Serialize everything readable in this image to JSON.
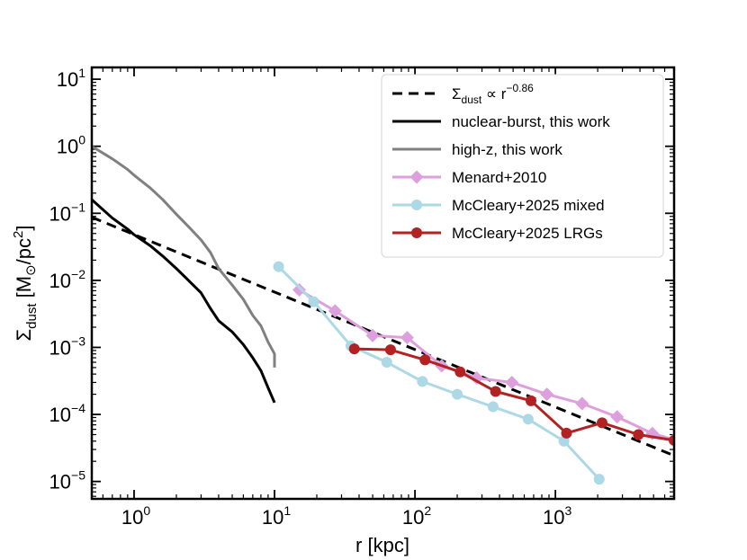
{
  "chart_data": {
    "type": "line",
    "xscale": "log",
    "yscale": "log",
    "xlim": [
      0.5,
      7000
    ],
    "ylim": [
      5.5e-06,
      15
    ],
    "xlabel": "r [kpc]",
    "ylabel": {
      "base": "Σ",
      "sub": "dust",
      "unit_main": " [M",
      "unit_sun": "⊙",
      "unit_rest": "/pc",
      "unit_exp": "2",
      "unit_close": "]"
    },
    "x_ticks": [
      {
        "base": "10",
        "exp": "0"
      },
      {
        "base": "10",
        "exp": "1"
      },
      {
        "base": "10",
        "exp": "2"
      },
      {
        "base": "10",
        "exp": "3"
      }
    ],
    "y_ticks": [
      {
        "base": "10",
        "exp": "−5"
      },
      {
        "base": "10",
        "exp": "−4"
      },
      {
        "base": "10",
        "exp": "−3"
      },
      {
        "base": "10",
        "exp": "−2"
      },
      {
        "base": "10",
        "exp": "−1"
      },
      {
        "base": "10",
        "exp": "0"
      },
      {
        "base": "10",
        "exp": "1"
      }
    ],
    "legend_position": "top-right",
    "series": [
      {
        "name": "Σdust ∝ r−0.86",
        "legend": {
          "base": "Σ",
          "sub": "dust",
          "mid": " ∝ r",
          "exp": "−0.86"
        },
        "style": "dashed",
        "color": "#000000",
        "marker": "none",
        "x": [
          0.5,
          7000
        ],
        "y": [
          0.0873,
          2.43e-05
        ]
      },
      {
        "name": "nuclear-burst, this work",
        "legend": {
          "text": "nuclear-burst, this work"
        },
        "style": "solid",
        "color": "#000000",
        "marker": "none",
        "x": [
          0.5,
          0.7,
          0.9,
          1.0,
          1.3,
          1.6,
          2.0,
          2.5,
          3.0,
          3.5,
          4.0,
          5.0,
          6.0,
          7.0,
          8.0,
          9.0,
          10.0
        ],
        "y": [
          0.16,
          0.085,
          0.058,
          0.048,
          0.033,
          0.023,
          0.015,
          0.0095,
          0.0065,
          0.0038,
          0.0025,
          0.0017,
          0.0011,
          0.0007,
          0.00045,
          0.00025,
          0.00015
        ]
      },
      {
        "name": "high-z, this work",
        "legend": {
          "text": "high-z, this work"
        },
        "style": "solid",
        "color": "#808080",
        "marker": "none",
        "x": [
          0.5,
          0.7,
          0.9,
          1.0,
          1.3,
          1.6,
          2.0,
          2.5,
          3.0,
          3.5,
          4.0,
          5.0,
          6.0,
          7.0,
          8.0,
          9.0,
          10.0,
          10.0
        ],
        "y": [
          1.0,
          0.65,
          0.45,
          0.37,
          0.24,
          0.16,
          0.097,
          0.06,
          0.04,
          0.026,
          0.015,
          0.0085,
          0.0052,
          0.003,
          0.0021,
          0.0012,
          0.0008,
          0.0005
        ]
      },
      {
        "name": "Menard+2010",
        "legend": {
          "text": "Menard+2010"
        },
        "style": "solid",
        "color": "#dda0dd",
        "marker": "diamond",
        "x": [
          15,
          27,
          50,
          88,
          155,
          275,
          490,
          870,
          1550,
          2750,
          4900,
          7000
        ],
        "y": [
          0.0072,
          0.0035,
          0.0015,
          0.0014,
          0.00053,
          0.00035,
          0.0003,
          0.0002,
          0.000145,
          9.2e-05,
          5.2e-05,
          4.2e-05
        ]
      },
      {
        "name": "McCleary+2025 mixed",
        "legend": {
          "text": "McCleary+2025 mixed"
        },
        "style": "solid",
        "color": "#add8e6",
        "marker": "circle",
        "x": [
          10.7,
          19,
          35,
          63,
          113,
          200,
          360,
          640,
          1150,
          2050
        ],
        "y": [
          0.016,
          0.0048,
          0.00105,
          0.0006,
          0.00031,
          0.0002,
          0.00013,
          8.5e-05,
          4e-05,
          1.08e-05
        ]
      },
      {
        "name": "McCleary+2025 LRGs",
        "legend": {
          "text": "McCleary+2025 LRGs"
        },
        "style": "solid",
        "color": "#b22222",
        "marker": "circle",
        "x": [
          37,
          67,
          118,
          210,
          375,
          670,
          1200,
          2150,
          3900,
          7000
        ],
        "y": [
          0.00095,
          0.00092,
          0.00065,
          0.00043,
          0.00022,
          0.00016,
          5.25e-05,
          7.5e-05,
          5e-05,
          4.1e-05
        ]
      }
    ]
  }
}
